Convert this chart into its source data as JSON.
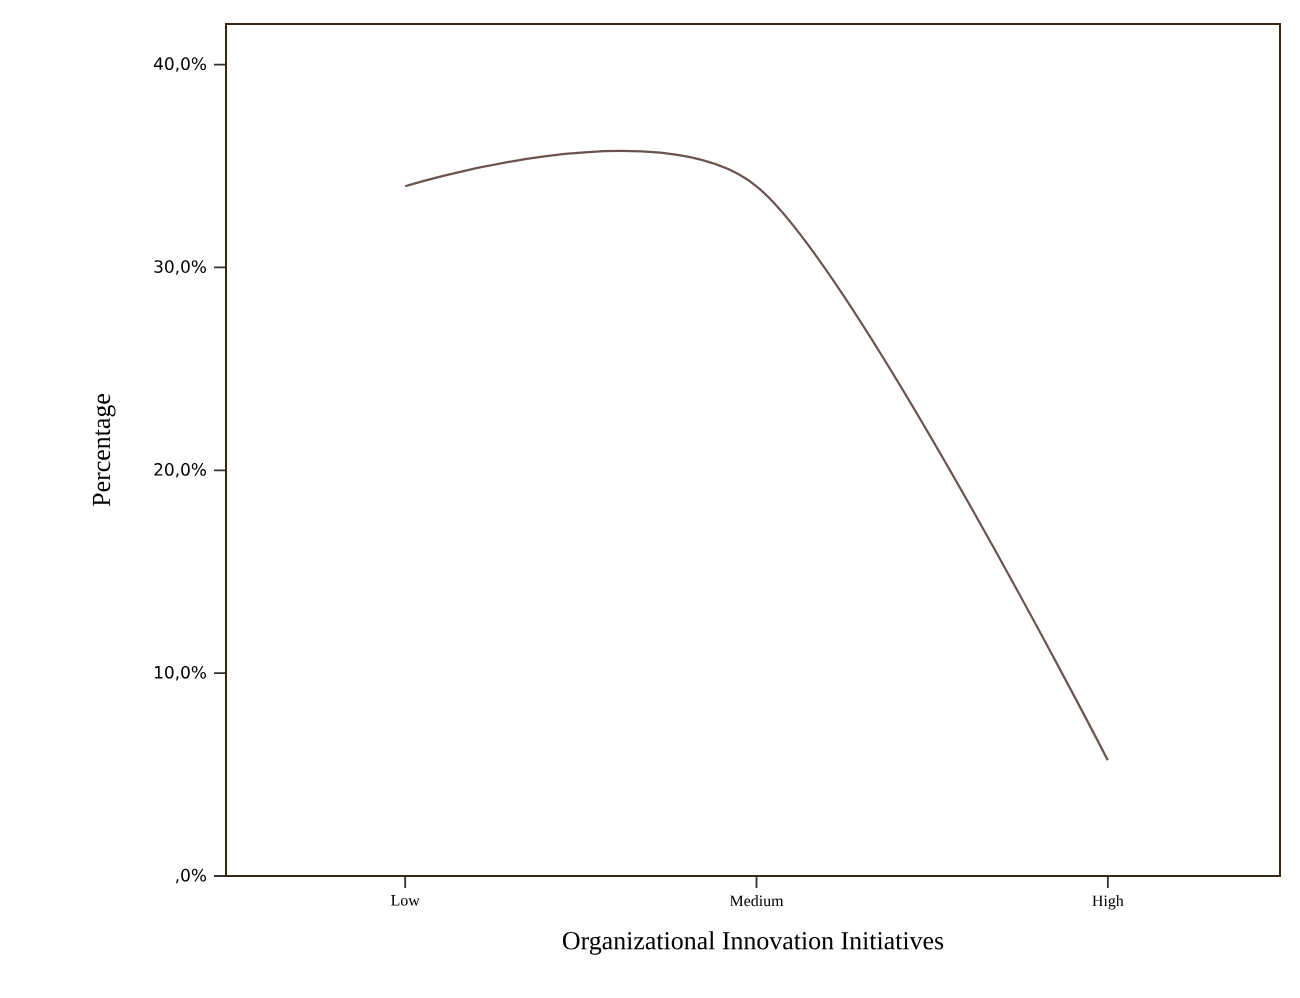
{
  "chart_data": {
    "type": "line",
    "xlabel": "Organizational Innovation Initiatives",
    "ylabel": "Percentage",
    "categories": [
      "Low",
      "Medium",
      "High"
    ],
    "series": [
      {
        "color": "#6b5450",
        "values": [
          34.0,
          34.0,
          5.7
        ]
      }
    ],
    "ylim": [
      0,
      42
    ],
    "yticks": [
      {
        "value": 0,
        "label": ",0%"
      },
      {
        "value": 10,
        "label": "10,0%"
      },
      {
        "value": 20,
        "label": "20,0%"
      },
      {
        "value": 30,
        "label": "30,0%"
      },
      {
        "value": 40,
        "label": "40,0%"
      }
    ],
    "marker": "none",
    "line_style": "solid"
  }
}
